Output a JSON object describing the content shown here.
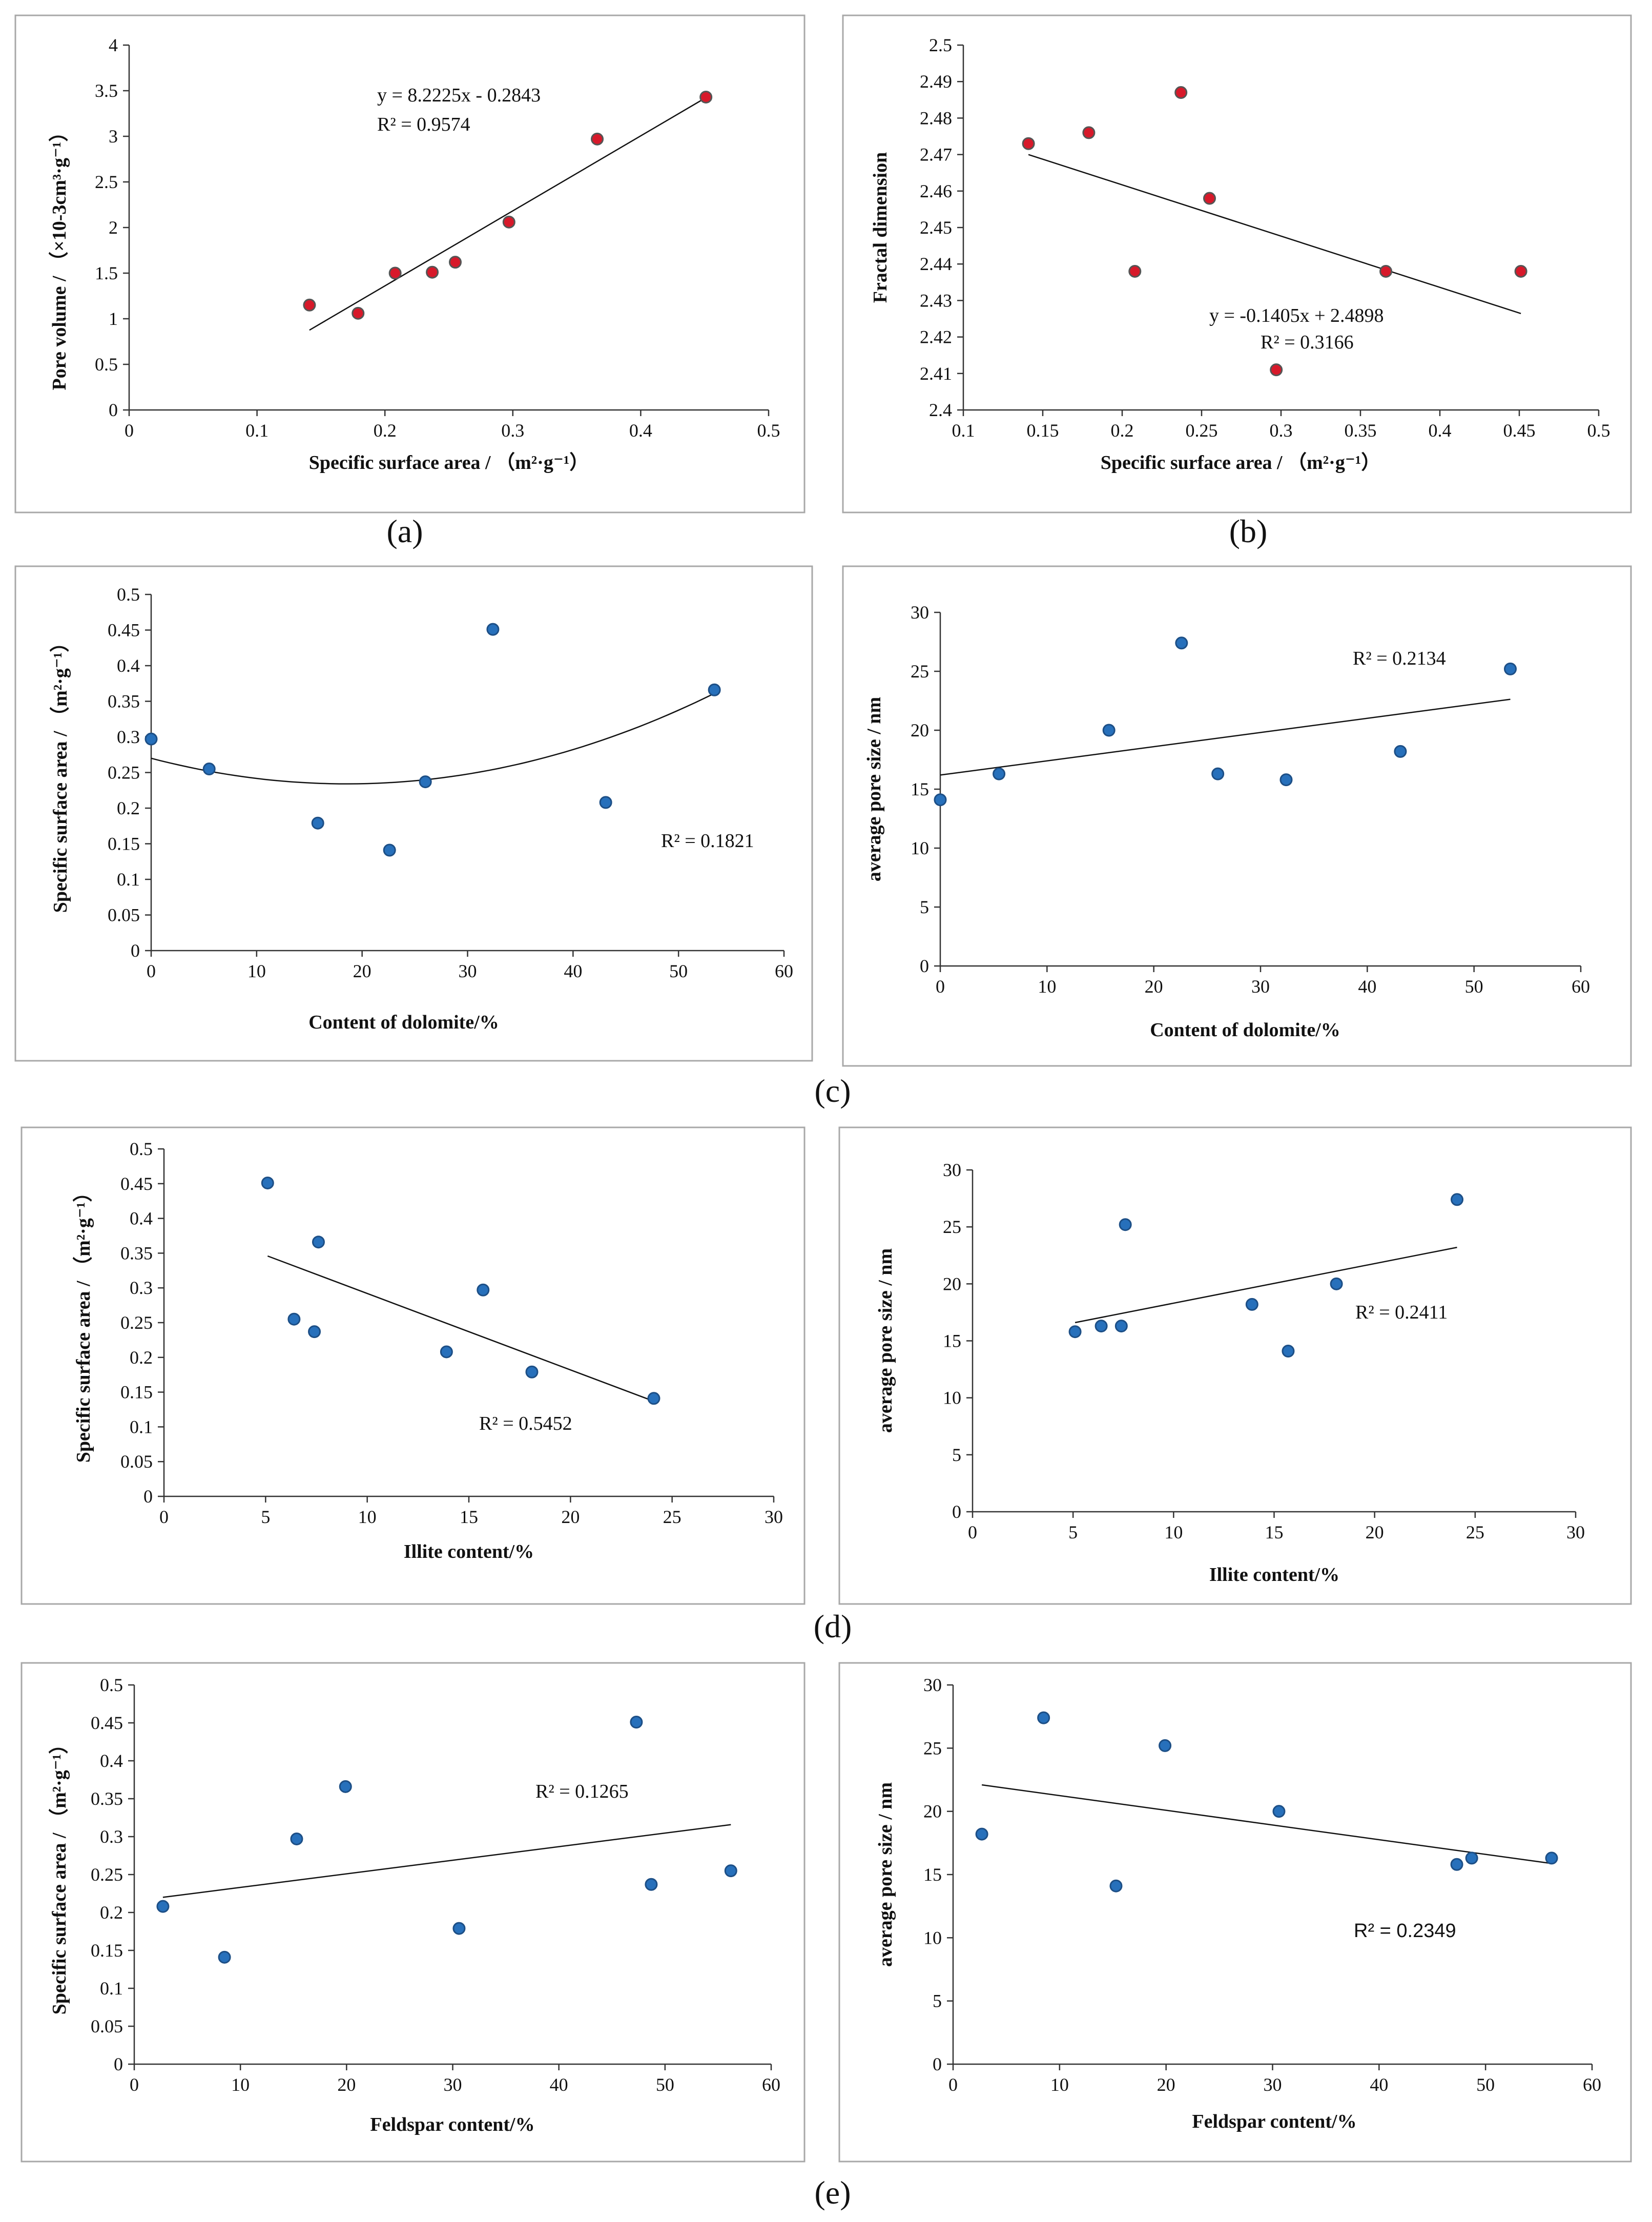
{
  "panel_labels": [
    "(a)",
    "(b)",
    "(c)",
    "(d)",
    "(e)"
  ],
  "colors": {
    "red_marker": "#d7192a",
    "red_edge": "#555555",
    "blue_marker": "#2770bb",
    "blue_edge": "#1d4f86",
    "line": "#111111",
    "frame": "#a8a8a8"
  },
  "chart_data": [
    {
      "id": "a",
      "type": "scatter",
      "title": "",
      "xlabel": "Specific surface area /  （m²·g⁻¹）",
      "ylabel": "Pore volume / （×10-3cm³·g⁻¹）",
      "xlim": [
        0,
        0.5
      ],
      "ylim": [
        0,
        4
      ],
      "xticks": [
        "0",
        "0.1",
        "0.2",
        "0.3",
        "0.4",
        "0.5"
      ],
      "yticks": [
        "0",
        "0.5",
        "1",
        "1.5",
        "2",
        "2.5",
        "3",
        "3.5",
        "4"
      ],
      "points": [
        [
          0.141,
          1.15
        ],
        [
          0.179,
          1.06
        ],
        [
          0.208,
          1.5
        ],
        [
          0.237,
          1.51
        ],
        [
          0.255,
          1.62
        ],
        [
          0.297,
          2.06
        ],
        [
          0.366,
          2.97
        ],
        [
          0.451,
          3.43
        ]
      ],
      "trend": {
        "kind": "linear",
        "x": [
          0.141,
          0.451
        ],
        "coef": [
          8.2225,
          -0.2843
        ]
      },
      "equation": "y = 8.2225x - 0.2843",
      "r2": "R² = 0.9574",
      "marker": "red"
    },
    {
      "id": "b",
      "type": "scatter",
      "title": "",
      "xlabel": "Specific surface area /  （m²·g⁻¹）",
      "ylabel": "Fractal dimension",
      "xlim": [
        0.1,
        0.5
      ],
      "ylim": [
        2.4,
        2.5
      ],
      "xticks": [
        "0.1",
        "0.15",
        "0.2",
        "0.25",
        "0.3",
        "0.35",
        "0.4",
        "0.45",
        "0.5"
      ],
      "yticks": [
        "2.4",
        "2.41",
        "2.42",
        "2.43",
        "2.44",
        "2.45",
        "2.46",
        "2.47",
        "2.48",
        "2.49",
        "2.5"
      ],
      "points": [
        [
          0.141,
          2.473
        ],
        [
          0.179,
          2.476
        ],
        [
          0.208,
          2.438
        ],
        [
          0.237,
          2.487
        ],
        [
          0.255,
          2.458
        ],
        [
          0.297,
          2.411
        ],
        [
          0.366,
          2.438
        ],
        [
          0.451,
          2.438
        ]
      ],
      "trend": {
        "kind": "linear",
        "x": [
          0.141,
          0.451
        ],
        "coef": [
          -0.1405,
          2.4898
        ]
      },
      "equation": "y = -0.1405x + 2.4898",
      "r2": "R² = 0.3166",
      "marker": "red"
    },
    {
      "id": "c1",
      "type": "scatter",
      "title": "",
      "xlabel": "Content of dolomite/%",
      "ylabel": "Specific surface area / （m²·g⁻¹）",
      "xlim": [
        0,
        60
      ],
      "ylim": [
        0,
        0.5
      ],
      "xticks": [
        "0",
        "10",
        "20",
        "30",
        "40",
        "50",
        "60"
      ],
      "yticks": [
        "0",
        "0.05",
        "0.1",
        "0.15",
        "0.2",
        "0.25",
        "0.3",
        "0.35",
        "0.4",
        "0.45",
        "0.5"
      ],
      "points": [
        [
          0,
          0.297
        ],
        [
          5.5,
          0.255
        ],
        [
          15.8,
          0.179
        ],
        [
          22.6,
          0.141
        ],
        [
          26,
          0.237
        ],
        [
          32.4,
          0.451
        ],
        [
          43.1,
          0.208
        ],
        [
          53.4,
          0.366
        ]
      ],
      "trend": {
        "kind": "poly2",
        "x": [
          0,
          53.4
        ],
        "coef": [
          0.0001045,
          -0.003875,
          0.27
        ]
      },
      "r2": "R² = 0.1821",
      "marker": "blue"
    },
    {
      "id": "c2",
      "type": "scatter",
      "title": "",
      "xlabel": "Content of dolomite/%",
      "ylabel": "average pore size / nm",
      "xlim": [
        0,
        60
      ],
      "ylim": [
        0,
        30
      ],
      "xticks": [
        "0",
        "10",
        "20",
        "30",
        "40",
        "50",
        "60"
      ],
      "yticks": [
        "0",
        "5",
        "10",
        "15",
        "20",
        "25",
        "30"
      ],
      "points": [
        [
          0,
          14.1
        ],
        [
          5.5,
          16.3
        ],
        [
          15.8,
          20
        ],
        [
          22.6,
          27.4
        ],
        [
          26,
          16.3
        ],
        [
          32.4,
          15.8
        ],
        [
          43.1,
          18.2
        ],
        [
          53.4,
          25.2
        ]
      ],
      "trend": {
        "kind": "linear",
        "x": [
          0,
          53.4
        ],
        "coef": [
          0.1203,
          16.2
        ]
      },
      "r2": "R² = 0.2134",
      "marker": "blue"
    },
    {
      "id": "d1",
      "type": "scatter",
      "title": "",
      "xlabel": "Illite content/%",
      "ylabel": "Specific surface area / （m²·g⁻¹）",
      "xlim": [
        0,
        30
      ],
      "ylim": [
        0,
        0.5
      ],
      "xticks": [
        "0",
        "5",
        "10",
        "15",
        "20",
        "25",
        "30"
      ],
      "yticks": [
        "0",
        "0.05",
        "0.1",
        "0.15",
        "0.2",
        "0.25",
        "0.3",
        "0.35",
        "0.4",
        "0.45",
        "0.5"
      ],
      "points": [
        [
          5.1,
          0.451
        ],
        [
          6.4,
          0.255
        ],
        [
          7.4,
          0.237
        ],
        [
          7.6,
          0.366
        ],
        [
          13.9,
          0.208
        ],
        [
          15.7,
          0.297
        ],
        [
          18.1,
          0.179
        ],
        [
          24.1,
          0.141
        ]
      ],
      "trend": {
        "kind": "linear",
        "x": [
          5.1,
          24.1
        ],
        "coef": [
          -0.011,
          0.402
        ]
      },
      "r2": "R² = 0.5452",
      "marker": "blue"
    },
    {
      "id": "d2",
      "type": "scatter",
      "title": "",
      "xlabel": "Illite content/%",
      "ylabel": "average pore size / nm",
      "xlim": [
        0,
        30
      ],
      "ylim": [
        0,
        30
      ],
      "xticks": [
        "0",
        "5",
        "10",
        "15",
        "20",
        "25",
        "30"
      ],
      "yticks": [
        "0",
        "5",
        "10",
        "15",
        "20",
        "25",
        "30"
      ],
      "points": [
        [
          5.1,
          15.8
        ],
        [
          6.4,
          16.3
        ],
        [
          7.4,
          16.3
        ],
        [
          7.6,
          25.2
        ],
        [
          13.9,
          18.2
        ],
        [
          15.7,
          14.1
        ],
        [
          18.1,
          20
        ],
        [
          24.1,
          27.4
        ]
      ],
      "trend": {
        "kind": "linear",
        "x": [
          5.1,
          24.1
        ],
        "coef": [
          0.3474,
          14.83
        ]
      },
      "r2": "R² = 0.2411",
      "marker": "blue"
    },
    {
      "id": "e1",
      "type": "scatter",
      "title": "",
      "xlabel": "Feldspar content/%",
      "ylabel": "Specific surface area / （m²·g⁻¹）",
      "xlim": [
        0,
        60
      ],
      "ylim": [
        0,
        0.5
      ],
      "xticks": [
        "0",
        "10",
        "20",
        "30",
        "40",
        "50",
        "60"
      ],
      "yticks": [
        "0",
        "0.05",
        "0.1",
        "0.15",
        "0.2",
        "0.25",
        "0.3",
        "0.35",
        "0.4",
        "0.45",
        "0.5"
      ],
      "points": [
        [
          2.7,
          0.208
        ],
        [
          8.5,
          0.141
        ],
        [
          15.3,
          0.297
        ],
        [
          19.9,
          0.366
        ],
        [
          30.6,
          0.179
        ],
        [
          47.3,
          0.451
        ],
        [
          48.7,
          0.237
        ],
        [
          56.2,
          0.255
        ]
      ],
      "trend": {
        "kind": "linear",
        "x": [
          2.7,
          56.2
        ],
        "coef": [
          0.00179,
          0.2152
        ]
      },
      "r2": "R² = 0.1265",
      "marker": "blue"
    },
    {
      "id": "e2",
      "type": "scatter",
      "title": "",
      "xlabel": "Feldspar content/%",
      "ylabel": "average pore size / nm",
      "xlim": [
        0,
        60
      ],
      "ylim": [
        0,
        30
      ],
      "xticks": [
        "0",
        "10",
        "20",
        "30",
        "40",
        "50",
        "60"
      ],
      "yticks": [
        "0",
        "5",
        "10",
        "15",
        "20",
        "25",
        "30"
      ],
      "points": [
        [
          2.7,
          18.2
        ],
        [
          8.5,
          27.4
        ],
        [
          15.3,
          14.1
        ],
        [
          19.9,
          25.2
        ],
        [
          30.6,
          20
        ],
        [
          47.3,
          15.8
        ],
        [
          48.7,
          16.3
        ],
        [
          56.2,
          16.3
        ]
      ],
      "trend": {
        "kind": "linear",
        "x": [
          2.7,
          56.2
        ],
        "coef": [
          -0.1163,
          22.41
        ]
      },
      "r2": "R² = 0.2349",
      "marker": "blue"
    }
  ]
}
